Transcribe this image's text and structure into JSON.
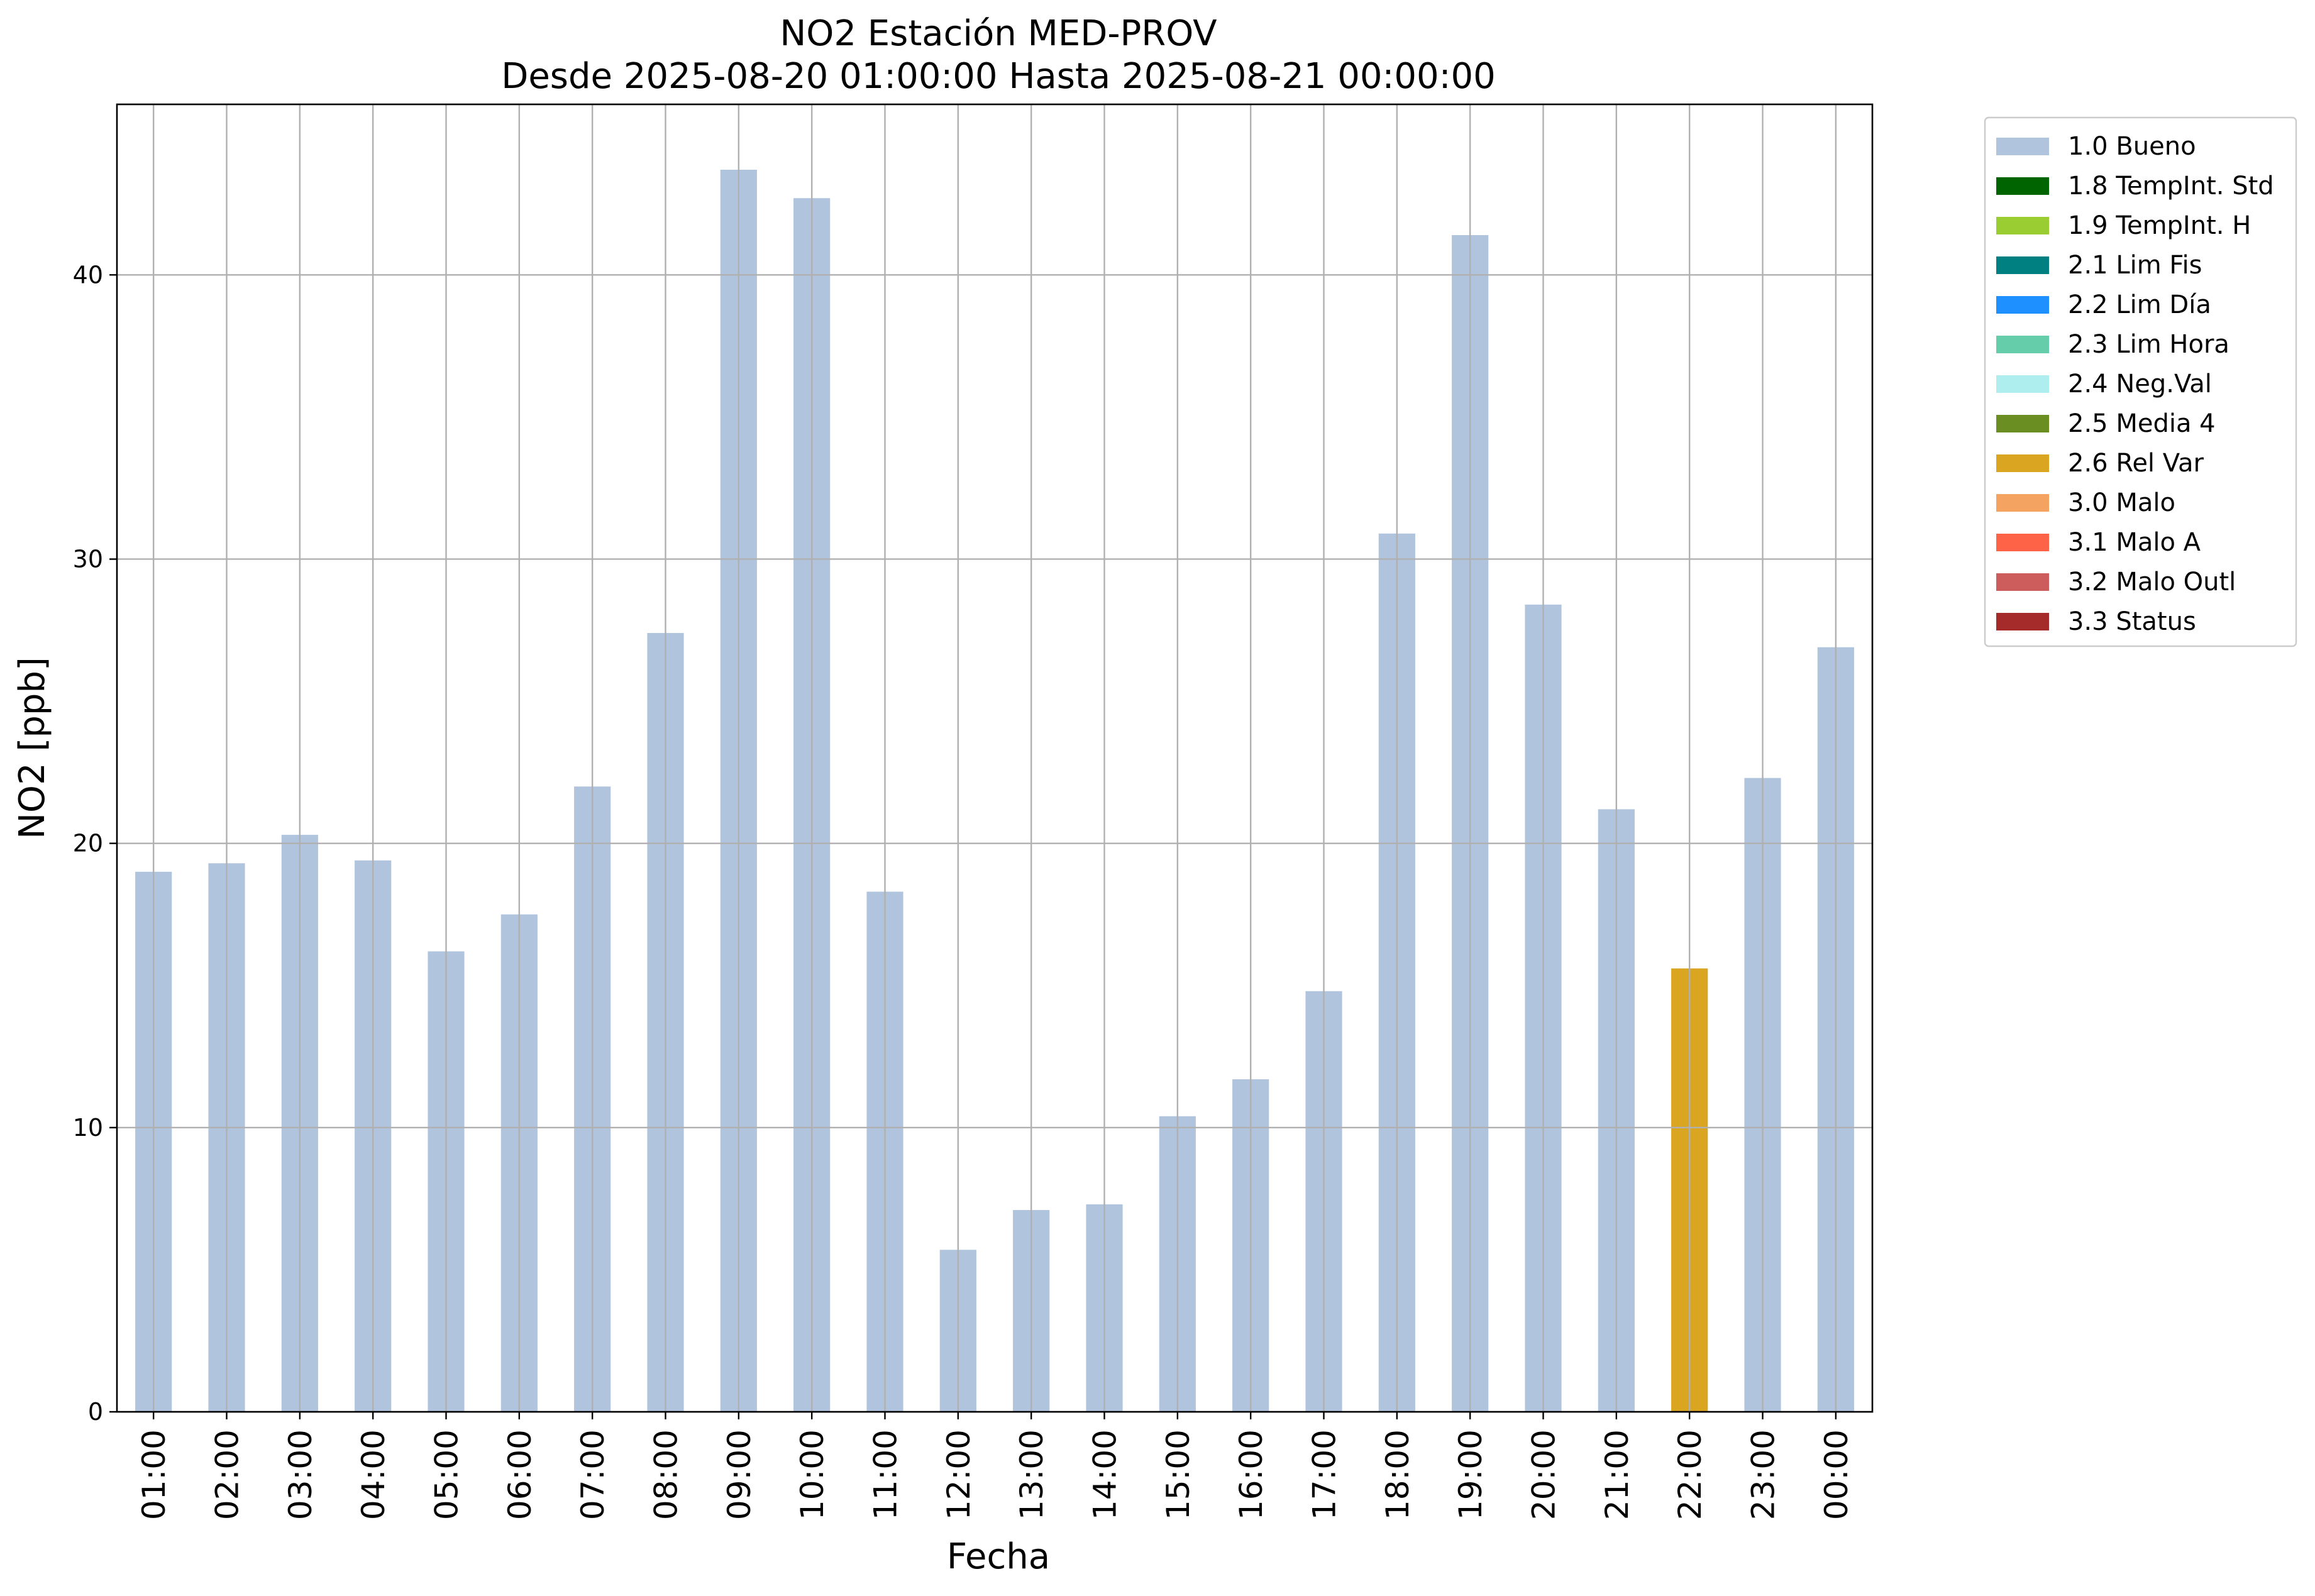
{
  "chart_data": {
    "type": "bar",
    "title": "NO2 Estación MED-PROV",
    "subtitle": "Desde 2025-08-20 01:00:00 Hasta 2025-08-21 00:00:00",
    "xlabel": "Fecha",
    "ylabel": "NO2 [ppb]",
    "ylim": [
      0,
      46
    ],
    "yticks": [
      0,
      10,
      20,
      30,
      40
    ],
    "grid": true,
    "legend_position": "outside-top-right",
    "categories": [
      "01:00",
      "02:00",
      "03:00",
      "04:00",
      "05:00",
      "06:00",
      "07:00",
      "08:00",
      "09:00",
      "10:00",
      "11:00",
      "12:00",
      "13:00",
      "14:00",
      "15:00",
      "16:00",
      "17:00",
      "18:00",
      "19:00",
      "20:00",
      "21:00",
      "22:00",
      "23:00",
      "00:00"
    ],
    "values": [
      19.0,
      19.3,
      20.3,
      19.4,
      16.2,
      17.5,
      22.0,
      27.4,
      43.7,
      42.7,
      18.3,
      5.7,
      7.1,
      7.3,
      10.4,
      11.7,
      14.8,
      30.9,
      41.4,
      28.4,
      21.2,
      15.6,
      22.3,
      26.9
    ],
    "flags": [
      "1.0 Bueno",
      "1.0 Bueno",
      "1.0 Bueno",
      "1.0 Bueno",
      "1.0 Bueno",
      "1.0 Bueno",
      "1.0 Bueno",
      "1.0 Bueno",
      "1.0 Bueno",
      "1.0 Bueno",
      "1.0 Bueno",
      "1.0 Bueno",
      "1.0 Bueno",
      "1.0 Bueno",
      "1.0 Bueno",
      "1.0 Bueno",
      "1.0 Bueno",
      "1.0 Bueno",
      "1.0 Bueno",
      "1.0 Bueno",
      "1.0 Bueno",
      "2.6 Rel Var",
      "1.0 Bueno",
      "1.0 Bueno"
    ],
    "legend": [
      {
        "name": "1.0 Bueno",
        "color": "#b0c4de"
      },
      {
        "name": "1.8 TempInt. Std",
        "color": "#006400"
      },
      {
        "name": "1.9 TempInt. H",
        "color": "#9acd32"
      },
      {
        "name": "2.1 Lim Fis",
        "color": "#008080"
      },
      {
        "name": "2.2 Lim Día",
        "color": "#1e90ff"
      },
      {
        "name": "2.3 Lim Hora",
        "color": "#66cdaa"
      },
      {
        "name": "2.4 Neg.Val",
        "color": "#afeeee"
      },
      {
        "name": "2.5 Media 4",
        "color": "#6b8e23"
      },
      {
        "name": "2.6 Rel Var",
        "color": "#daa520"
      },
      {
        "name": "3.0 Malo",
        "color": "#f4a460"
      },
      {
        "name": "3.1 Malo A",
        "color": "#ff6347"
      },
      {
        "name": "3.2 Malo Outl",
        "color": "#cd5c5c"
      },
      {
        "name": "3.3 Status",
        "color": "#a52a2a"
      }
    ]
  }
}
